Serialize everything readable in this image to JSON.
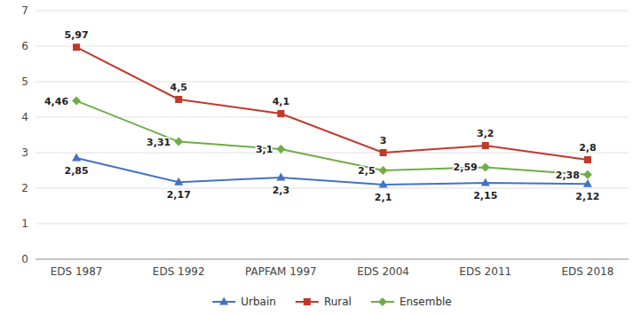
{
  "chart_data": {
    "type": "line",
    "categories": [
      "EDS 1987",
      "EDS 1992",
      "PAPFAM 1997",
      "EDS 2004",
      "EDS 2011",
      "EDS 2018"
    ],
    "series": [
      {
        "name": "Urbain",
        "color": "#4472C4",
        "marker": "triangle",
        "values": [
          2.85,
          2.17,
          2.3,
          2.1,
          2.15,
          2.12
        ],
        "value_labels": [
          "2,85",
          "2,17",
          "2,3",
          "2,1",
          "2,15",
          "2,12"
        ]
      },
      {
        "name": "Rural",
        "color": "#C0392B",
        "marker": "square",
        "values": [
          5.97,
          4.5,
          4.1,
          3.0,
          3.2,
          2.8
        ],
        "value_labels": [
          "5,97",
          "4,5",
          "4,1",
          "3",
          "3,2",
          "2,8"
        ]
      },
      {
        "name": "Ensemble",
        "color": "#70AD47",
        "marker": "diamond",
        "values": [
          4.46,
          3.31,
          3.1,
          2.5,
          2.59,
          2.38
        ],
        "value_labels": [
          "4,46",
          "3,31",
          "3,1",
          "2,5",
          "2,59",
          "2,38"
        ]
      }
    ],
    "ylim": [
      0,
      7
    ],
    "yticks": [
      0,
      1,
      2,
      3,
      4,
      5,
      6,
      7
    ],
    "grid": true,
    "legend": "bottom",
    "data_labels": true
  }
}
